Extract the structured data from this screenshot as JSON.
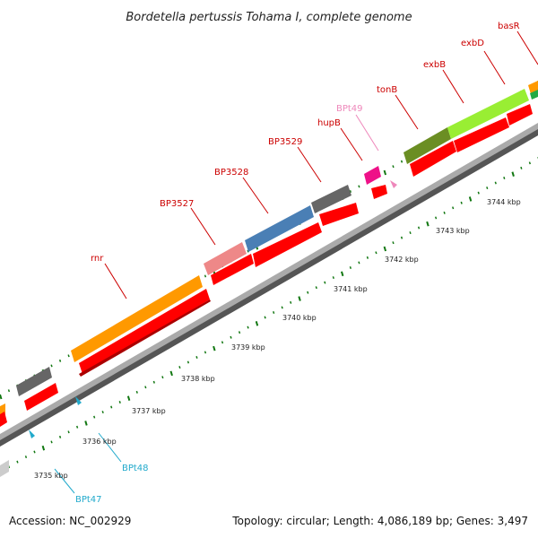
{
  "title": "Bordetella pertussis Tohama I, complete genome",
  "footer": {
    "accession": "Accession: NC_002929",
    "summary": "Topology: circular; Length: 4,086,189 bp; Genes: 3,497"
  },
  "scale": {
    "ticks": [
      "3735 kbp",
      "3736 kbp",
      "3737 kbp",
      "3738 kbp",
      "3739 kbp",
      "3740 kbp",
      "3741 kbp",
      "3742 kbp",
      "3743 kbp",
      "3744 kbp"
    ]
  },
  "colors": {
    "cds_reverse": "#ff0000",
    "orange": "#ff9900",
    "pink": "#ee8888",
    "blue": "#4a7fb5",
    "dark_gray": "#666666",
    "magenta": "#ee1188",
    "olive": "#6b8e23",
    "lime": "#99ee33",
    "light_gray": "#cccccc",
    "label_red": "#cc0000",
    "label_pink": "#ee88bb",
    "label_cyan": "#22aacc",
    "tick_green": "#117711"
  },
  "genes": [
    {
      "name": "rnr",
      "color": "label_red"
    },
    {
      "name": "BP3527",
      "color": "label_red"
    },
    {
      "name": "BP3528",
      "color": "label_red"
    },
    {
      "name": "BP3529",
      "color": "label_red"
    },
    {
      "name": "hupB",
      "color": "label_red"
    },
    {
      "name": "BPt49",
      "color": "label_pink"
    },
    {
      "name": "tonB",
      "color": "label_red"
    },
    {
      "name": "exbB",
      "color": "label_red"
    },
    {
      "name": "exbD",
      "color": "label_red"
    },
    {
      "name": "basR",
      "color": "label_red"
    },
    {
      "name": "BPt48",
      "color": "label_cyan"
    },
    {
      "name": "BPt47",
      "color": "label_cyan"
    }
  ]
}
